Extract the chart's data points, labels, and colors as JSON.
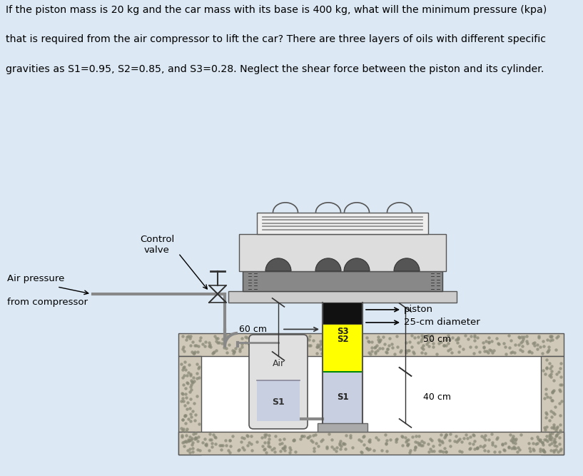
{
  "bg_color": "#dce9f5",
  "text_color": "#000000",
  "title_lines": [
    "If the piston mass is 20 kg and the car mass with its base is 400 kg, what will the minimum pressure (kpa)",
    "that is required from the air compressor to lift the car? There are three layers of oils with different specific",
    "gravities as S1=0.95, S2=0.85, and S3=0.28. Neglect the shear force between the piston and its cylinder."
  ],
  "S1_color": "#c8cfe0",
  "S2_color": "#ffff00",
  "S3_color": "#ffb6c8",
  "piston_color": "#111111",
  "pipe_color": "#888888",
  "wall_color": "#d0c8b8",
  "wall_dot_color": "#888877",
  "white": "#ffffff"
}
